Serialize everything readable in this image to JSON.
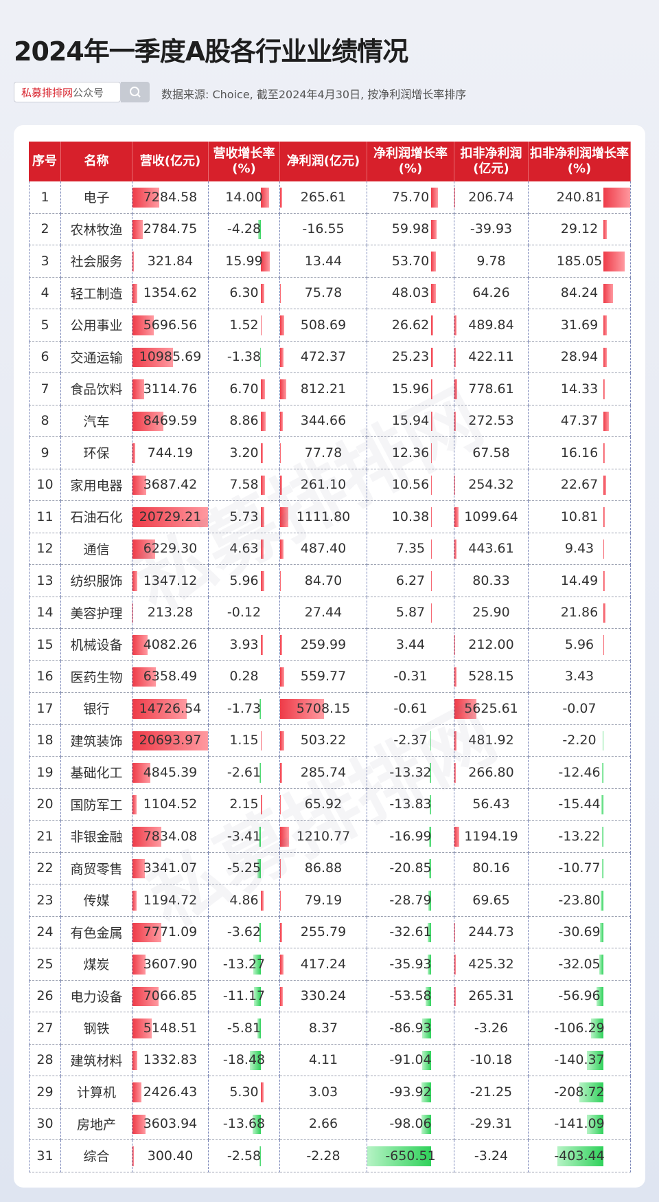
{
  "header": {
    "title": "2024年一季度A股各行业业绩情况",
    "badge_brand": "私募排排网",
    "badge_suffix": "公众号",
    "source": "数据来源: Choice, 截至2024年4月30日, 按净利润增长率排序"
  },
  "watermark": "私募排排网",
  "table": {
    "columns": [
      "序号",
      "名称",
      "营收(亿元)",
      "营收增长率(%)",
      "净利润(亿元)",
      "净利润增长率(%)",
      "扣非净利润(亿元)",
      "扣非净利润增长率(%)"
    ],
    "rows": [
      [
        "1",
        "电子",
        "7284.58",
        "14.00",
        "265.61",
        "75.70",
        "206.74",
        "240.81"
      ],
      [
        "2",
        "农林牧渔",
        "2784.75",
        "-4.28",
        "-16.55",
        "59.98",
        "-39.93",
        "29.12"
      ],
      [
        "3",
        "社会服务",
        "321.84",
        "15.99",
        "13.44",
        "53.70",
        "9.78",
        "185.05"
      ],
      [
        "4",
        "轻工制造",
        "1354.62",
        "6.30",
        "75.78",
        "48.03",
        "64.26",
        "84.24"
      ],
      [
        "5",
        "公用事业",
        "5696.56",
        "1.52",
        "508.69",
        "26.62",
        "489.84",
        "31.69"
      ],
      [
        "6",
        "交通运输",
        "10985.69",
        "-1.38",
        "472.37",
        "25.23",
        "422.11",
        "28.94"
      ],
      [
        "7",
        "食品饮料",
        "3114.76",
        "6.70",
        "812.21",
        "15.96",
        "778.61",
        "14.33"
      ],
      [
        "8",
        "汽车",
        "8469.59",
        "8.86",
        "344.66",
        "15.94",
        "272.53",
        "47.37"
      ],
      [
        "9",
        "环保",
        "744.19",
        "3.20",
        "77.78",
        "12.36",
        "67.58",
        "16.16"
      ],
      [
        "10",
        "家用电器",
        "3687.42",
        "7.58",
        "261.10",
        "10.56",
        "254.32",
        "22.67"
      ],
      [
        "11",
        "石油石化",
        "20729.21",
        "5.73",
        "1111.80",
        "10.38",
        "1099.64",
        "10.81"
      ],
      [
        "12",
        "通信",
        "6229.30",
        "4.63",
        "487.40",
        "7.35",
        "443.61",
        "9.43"
      ],
      [
        "13",
        "纺织服饰",
        "1347.12",
        "5.96",
        "84.70",
        "6.27",
        "80.33",
        "14.49"
      ],
      [
        "14",
        "美容护理",
        "213.28",
        "-0.12",
        "27.44",
        "5.87",
        "25.90",
        "21.86"
      ],
      [
        "15",
        "机械设备",
        "4082.26",
        "3.93",
        "259.99",
        "3.44",
        "212.00",
        "5.96"
      ],
      [
        "16",
        "医药生物",
        "6358.49",
        "0.28",
        "559.77",
        "-0.31",
        "528.15",
        "3.43"
      ],
      [
        "17",
        "银行",
        "14726.54",
        "-1.73",
        "5708.15",
        "-0.61",
        "5625.61",
        "-0.07"
      ],
      [
        "18",
        "建筑装饰",
        "20693.97",
        "1.15",
        "503.22",
        "-2.37",
        "481.92",
        "-2.20"
      ],
      [
        "19",
        "基础化工",
        "4845.39",
        "-2.61",
        "285.74",
        "-13.32",
        "266.80",
        "-12.46"
      ],
      [
        "20",
        "国防军工",
        "1104.52",
        "2.15",
        "65.92",
        "-13.83",
        "56.43",
        "-15.44"
      ],
      [
        "21",
        "非银金融",
        "7834.08",
        "-3.41",
        "1210.77",
        "-16.99",
        "1194.19",
        "-13.22"
      ],
      [
        "22",
        "商贸零售",
        "3341.07",
        "-5.25",
        "86.88",
        "-20.85",
        "80.16",
        "-10.77"
      ],
      [
        "23",
        "传媒",
        "1194.72",
        "4.86",
        "79.19",
        "-28.79",
        "69.65",
        "-23.80"
      ],
      [
        "24",
        "有色金属",
        "7771.09",
        "-3.62",
        "255.79",
        "-32.61",
        "244.73",
        "-30.69"
      ],
      [
        "25",
        "煤炭",
        "3607.90",
        "-13.27",
        "417.24",
        "-35.93",
        "425.32",
        "-32.05"
      ],
      [
        "26",
        "电力设备",
        "7066.85",
        "-11.17",
        "330.24",
        "-53.58",
        "265.31",
        "-56.96"
      ],
      [
        "27",
        "钢铁",
        "5148.51",
        "-5.81",
        "8.37",
        "-86.93",
        "-3.26",
        "-106.29"
      ],
      [
        "28",
        "建筑材料",
        "1332.83",
        "-18.48",
        "4.11",
        "-91.04",
        "-10.18",
        "-140.37"
      ],
      [
        "29",
        "计算机",
        "2426.43",
        "5.30",
        "3.03",
        "-93.92",
        "-21.25",
        "-208.72"
      ],
      [
        "30",
        "房地产",
        "3603.94",
        "-13.68",
        "2.66",
        "-98.06",
        "-29.31",
        "-141.09"
      ],
      [
        "31",
        "综合",
        "300.40",
        "-2.58",
        "-2.28",
        "-650.51",
        "-3.24",
        "-403.44"
      ]
    ]
  }
}
